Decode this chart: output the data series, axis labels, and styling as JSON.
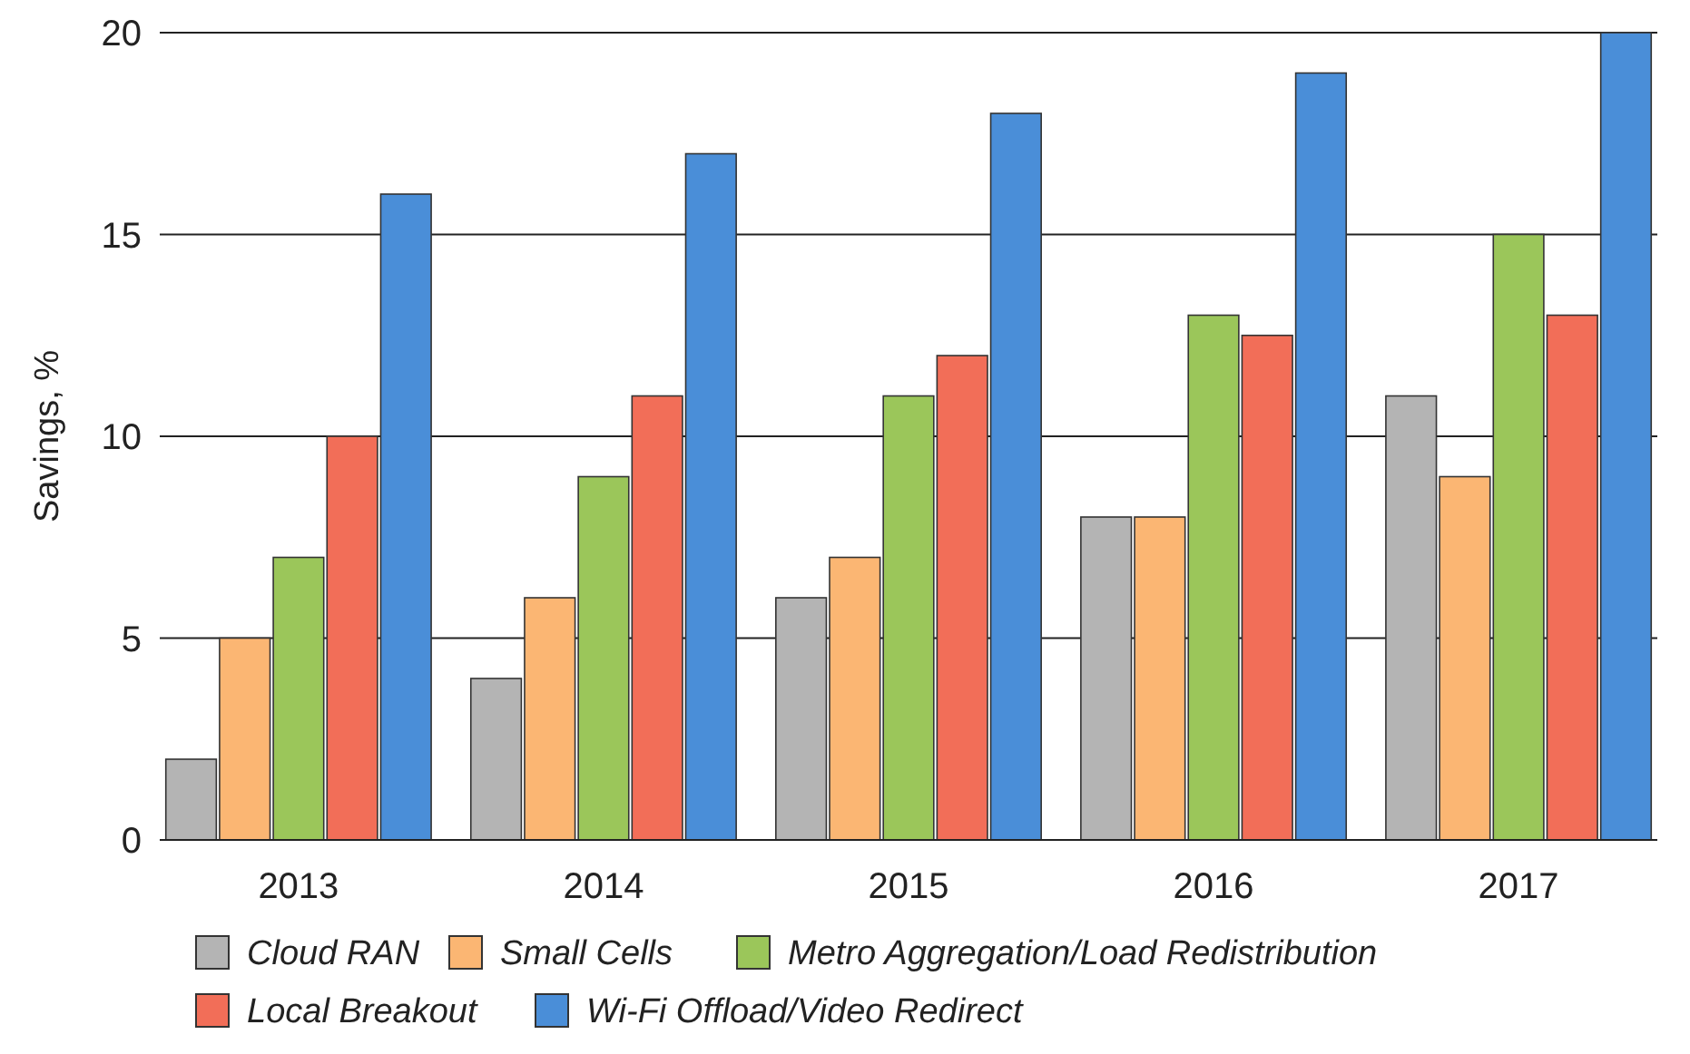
{
  "chart_data": {
    "type": "bar",
    "ylabel": "Savings, %",
    "categories": [
      "2013",
      "2014",
      "2015",
      "2016",
      "2017"
    ],
    "series": [
      {
        "name": "Cloud RAN",
        "color": "#b4b4b4",
        "values": [
          2,
          4,
          6,
          8,
          11
        ]
      },
      {
        "name": "Small Cells",
        "color": "#fbb673",
        "values": [
          5,
          6,
          7,
          8,
          9
        ]
      },
      {
        "name": "Metro Aggregation/Load Redistribution",
        "color": "#9bc65a",
        "values": [
          7,
          9,
          11,
          13,
          15
        ]
      },
      {
        "name": "Local Breakout",
        "color": "#f26e58",
        "values": [
          10,
          11,
          12,
          12.5,
          13
        ]
      },
      {
        "name": "Wi-Fi Offload/Video Redirect",
        "color": "#4a8ed8",
        "values": [
          16,
          17,
          18,
          19,
          20
        ]
      }
    ],
    "ylim": [
      0,
      20
    ],
    "yticks": [
      0,
      5,
      10,
      15,
      20
    ],
    "grid": "y",
    "legend": "bottom"
  }
}
